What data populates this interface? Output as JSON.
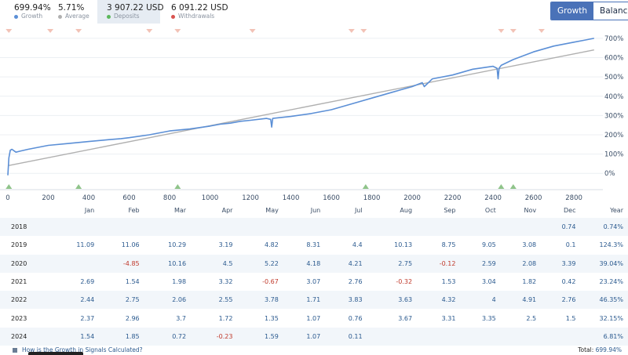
{
  "stats": [
    {
      "value": "699.94%",
      "label": "Growth",
      "color": "#5b8fd6"
    },
    {
      "value": "5.71%",
      "label": "Average",
      "color": "#b0b0b0"
    },
    {
      "value": "3 907.22 USD",
      "label": "Deposits",
      "color": "#5cb85c"
    },
    {
      "value": "6 091.22 USD",
      "label": "Withdrawals",
      "color": "#d9534f"
    }
  ],
  "toggle": {
    "growth": "Growth",
    "balance": "Balance"
  },
  "chart_data": {
    "type": "line",
    "title": "",
    "xlabel": "",
    "ylabel": "",
    "xlim": [
      0,
      2920
    ],
    "ylim": [
      -60,
      720
    ],
    "x_ticks": [
      0,
      200,
      400,
      600,
      800,
      1000,
      1200,
      1400,
      1600,
      1800,
      2000,
      2200,
      2400,
      2600,
      2800
    ],
    "y_ticks": [
      0,
      100,
      200,
      300,
      400,
      500,
      600,
      700
    ],
    "y_tick_labels": [
      "0%",
      "100%",
      "200%",
      "300%",
      "400%",
      "500%",
      "600%",
      "700%"
    ],
    "series": [
      {
        "name": "Growth",
        "color": "#5b8fd6",
        "x": [
          0,
          5,
          12,
          20,
          40,
          60,
          100,
          150,
          200,
          300,
          400,
          500,
          560,
          600,
          700,
          800,
          850,
          900,
          1000,
          1050,
          1100,
          1150,
          1200,
          1280,
          1300,
          1305,
          1310,
          1400,
          1500,
          1600,
          1700,
          1800,
          1900,
          2000,
          2050,
          2060,
          2100,
          2200,
          2300,
          2400,
          2420,
          2425,
          2430,
          2440,
          2500,
          2600,
          2700,
          2800,
          2850,
          2900
        ],
        "y": [
          -10,
          80,
          120,
          125,
          110,
          115,
          125,
          135,
          145,
          155,
          165,
          175,
          180,
          185,
          200,
          220,
          225,
          230,
          245,
          255,
          260,
          270,
          275,
          285,
          280,
          240,
          285,
          295,
          310,
          330,
          360,
          390,
          420,
          450,
          470,
          450,
          490,
          510,
          540,
          555,
          545,
          490,
          545,
          560,
          590,
          630,
          660,
          680,
          690,
          700
        ]
      },
      {
        "name": "Average",
        "color": "#b0b0b0",
        "x": [
          0,
          2900
        ],
        "y": [
          40,
          640
        ]
      }
    ],
    "deposits_x": [
      5,
      350,
      840,
      1770,
      2440,
      2500
    ],
    "withdrawals_x": [
      5,
      210,
      350,
      700,
      840,
      1210,
      1700,
      1760,
      2440,
      2500,
      2640
    ]
  },
  "table": {
    "headers": [
      "Jan",
      "Feb",
      "Mar",
      "Apr",
      "May",
      "Jun",
      "Jul",
      "Aug",
      "Sep",
      "Oct",
      "Nov",
      "Dec",
      "Year"
    ],
    "rows": [
      {
        "year": "2018",
        "cells": [
          "",
          "",
          "",
          "",
          "",
          "",
          "",
          "",
          "",
          "",
          "",
          "0.74",
          "0.74%"
        ]
      },
      {
        "year": "2019",
        "cells": [
          "11.09",
          "11.06",
          "10.29",
          "3.19",
          "4.82",
          "8.31",
          "4.4",
          "10.13",
          "8.75",
          "9.05",
          "3.08",
          "0.1",
          "124.3%"
        ]
      },
      {
        "year": "2020",
        "cells": [
          "",
          "-4.85",
          "10.16",
          "4.5",
          "5.22",
          "4.18",
          "4.21",
          "2.75",
          "-0.12",
          "2.59",
          "2.08",
          "3.39",
          "39.04%"
        ]
      },
      {
        "year": "2021",
        "cells": [
          "2.69",
          "1.54",
          "1.98",
          "3.32",
          "-0.67",
          "3.07",
          "2.76",
          "-0.32",
          "1.53",
          "3.04",
          "1.82",
          "0.42",
          "23.24%"
        ]
      },
      {
        "year": "2022",
        "cells": [
          "2.44",
          "2.75",
          "2.06",
          "2.55",
          "3.78",
          "1.71",
          "3.83",
          "3.63",
          "4.32",
          "4",
          "4.91",
          "2.76",
          "46.35%"
        ]
      },
      {
        "year": "2023",
        "cells": [
          "2.37",
          "2.96",
          "3.7",
          "1.72",
          "1.35",
          "1.07",
          "0.76",
          "3.67",
          "3.31",
          "3.35",
          "2.5",
          "1.5",
          "32.15%"
        ]
      },
      {
        "year": "2024",
        "cells": [
          "1.54",
          "1.85",
          "0.72",
          "-0.23",
          "1.59",
          "1.07",
          "0.11",
          "",
          "",
          "",
          "",
          "",
          "6.81%"
        ]
      }
    ]
  },
  "footer": {
    "question": "How is the Growth in Signals Calculated?",
    "total_label": "Total:",
    "total_value": "699.94%"
  }
}
